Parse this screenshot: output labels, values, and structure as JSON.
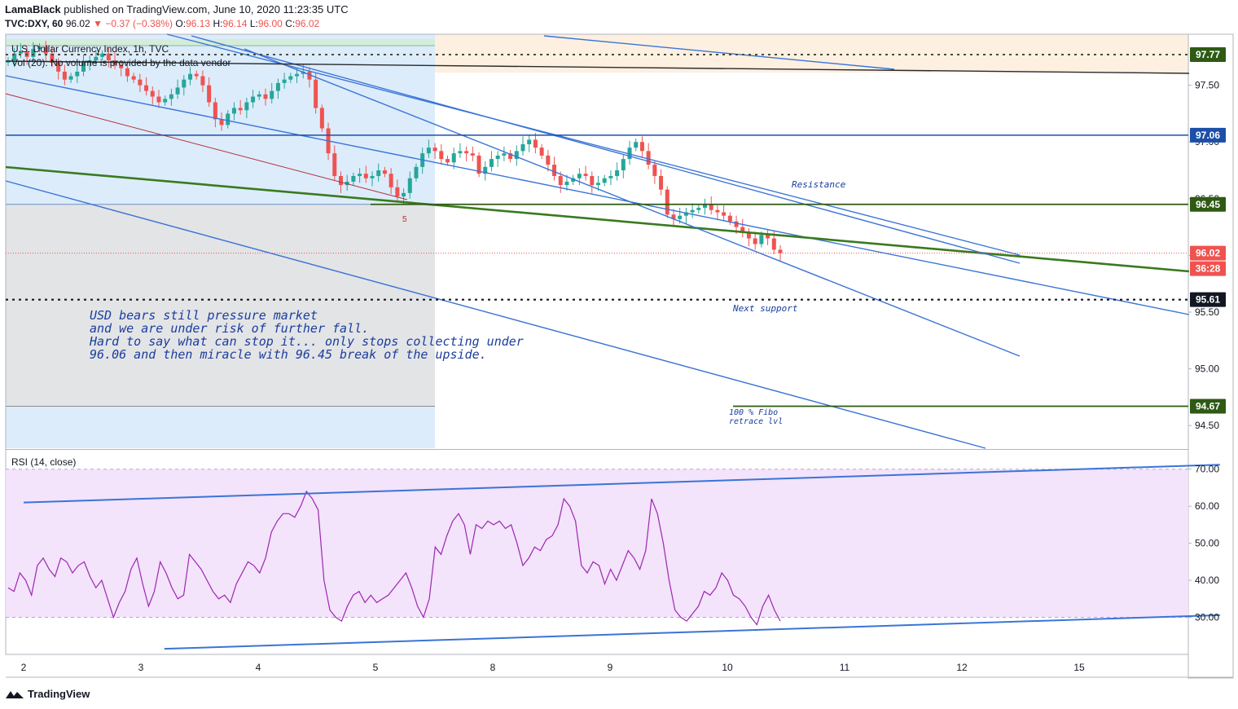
{
  "header": {
    "publisher": "LamaBlack",
    "published_text": "published on TradingView.com, June 10, 2020 11:23:35 UTC",
    "symbol_line_symbol": "TVC:DXY, 60",
    "symbol_line_price": "96.02",
    "symbol_line_change": "−0.37 (−0.38%)",
    "o_label": "O:",
    "o_value": "96.13",
    "h_label": "H:",
    "h_value": "96.14",
    "l_label": "L:",
    "l_value": "96.00",
    "c_label": "C:",
    "c_value": "96.02",
    "instrument_name": "U.S. Dollar Currency Index, 1h, TVC",
    "volume_legend": "Vol (20): No volume is provided by the data vendor"
  },
  "rsi_legend": "RSI (14, close)",
  "footer": {
    "brand": "TradingView"
  },
  "annotations": {
    "main_note": [
      "USD bears still pressure market",
      "and we are under risk of further fall.",
      "Hard to say what can stop it... only stops collecting under",
      "96.06 and then miracle with 96.45 break of the upside."
    ],
    "resistance": "Resistance",
    "next_support": "Next support",
    "fibo_line1": "100 % Fibo",
    "fibo_line2": "retrace lvl",
    "wave_label": "5"
  },
  "colors": {
    "up": "#26a69a",
    "down": "#ef5350",
    "trend_blue": "#3a74d6",
    "green": "#3a7a1e",
    "dark_green": "#2e5a14",
    "navy": "#1d4fa8",
    "rsi_line": "#9c27b0",
    "rsi_band": "#f3e3fb",
    "zone_blue": "#dcecfb",
    "zone_gray": "#e3e4e6",
    "zone_peach": "#fdf0e1"
  },
  "chart_data": [
    {
      "type": "candlestick",
      "ylim": [
        94.3,
        97.95
      ],
      "y_ticks": [
        94.5,
        95.0,
        95.5,
        96.0,
        96.5,
        97.0,
        97.5
      ],
      "y_tick_labels": [
        "94.50",
        "95.00",
        "95.50",
        "96.00",
        "96.50",
        "97.00",
        "97.50"
      ],
      "x_tick_labels": [
        "2",
        "3",
        "4",
        "5",
        "8",
        "9",
        "10",
        "11",
        "12",
        "15"
      ],
      "price_labels": [
        {
          "value": 97.77,
          "label": "97.77",
          "style": "dotted",
          "color": "#2e5a14"
        },
        {
          "value": 97.06,
          "label": "97.06",
          "style": "solid",
          "color": "#1d4fa8"
        },
        {
          "value": 96.45,
          "label": "96.45",
          "style": "solid",
          "color": "#2e5a14"
        },
        {
          "value": 96.02,
          "label": "96.02",
          "style": "current",
          "color": "#ef5350"
        },
        {
          "value": 95.61,
          "label": "95.61",
          "style": "dotted",
          "color": "#131722"
        },
        {
          "value": 94.67,
          "label": "94.67",
          "style": "solid",
          "color": "#2e5a14"
        }
      ],
      "countdown": "36:28",
      "close_series": [
        97.72,
        97.78,
        97.8,
        97.75,
        97.82,
        97.84,
        97.78,
        97.7,
        97.62,
        97.55,
        97.58,
        97.62,
        97.7,
        97.72,
        97.75,
        97.78,
        97.72,
        97.68,
        97.65,
        97.58,
        97.55,
        97.5,
        97.45,
        97.4,
        97.35,
        97.38,
        97.42,
        97.48,
        97.55,
        97.6,
        97.58,
        97.5,
        97.35,
        97.2,
        97.15,
        97.25,
        97.3,
        97.28,
        97.35,
        97.4,
        97.42,
        97.38,
        97.45,
        97.52,
        97.55,
        97.58,
        97.6,
        97.62,
        97.55,
        97.3,
        97.12,
        96.9,
        96.7,
        96.62,
        96.65,
        96.7,
        96.72,
        96.68,
        96.7,
        96.75,
        96.72,
        96.6,
        96.52,
        96.55,
        96.68,
        96.78,
        96.9,
        96.95,
        96.92,
        96.85,
        96.82,
        96.9,
        96.92,
        96.9,
        96.88,
        96.72,
        96.78,
        96.85,
        96.88,
        96.9,
        96.85,
        96.92,
        96.98,
        97.02,
        96.95,
        96.88,
        96.8,
        96.7,
        96.62,
        96.65,
        96.68,
        96.72,
        96.7,
        96.62,
        96.64,
        96.68,
        96.7,
        96.75,
        96.85,
        96.95,
        97.0,
        96.92,
        96.8,
        96.7,
        96.58,
        96.36,
        96.32,
        96.35,
        96.38,
        96.4,
        96.42,
        96.45,
        96.4,
        96.38,
        96.35,
        96.3,
        96.25,
        96.2,
        96.15,
        96.1,
        96.18,
        96.15,
        96.05,
        96.02
      ],
      "volume_available": false
    },
    {
      "type": "line",
      "name": "RSI (14, close)",
      "ylim": [
        20,
        75
      ],
      "y_ticks": [
        30,
        40,
        50,
        60,
        70
      ],
      "y_tick_labels": [
        "30.00",
        "40.00",
        "50.00",
        "60.00",
        "70.00"
      ],
      "values": [
        38,
        37,
        42,
        40,
        36,
        44,
        46,
        43,
        41,
        46,
        45,
        42,
        44,
        45,
        41,
        38,
        40,
        35,
        30,
        34,
        37,
        43,
        46,
        39,
        33,
        37,
        45,
        42,
        38,
        35,
        36,
        47,
        45,
        43,
        40,
        37,
        35,
        36,
        34,
        39,
        42,
        45,
        44,
        42,
        46,
        53,
        56,
        58,
        58,
        57,
        60,
        64,
        62,
        59,
        40,
        32,
        30,
        29,
        33,
        36,
        37,
        34,
        36,
        34,
        35,
        36,
        38,
        40,
        42,
        38,
        33,
        30,
        35,
        49,
        47,
        52,
        56,
        58,
        55,
        47,
        55,
        54,
        56,
        55,
        56,
        54,
        55,
        50,
        44,
        46,
        49,
        48,
        51,
        52,
        55,
        62,
        60,
        56,
        44,
        42,
        45,
        44,
        39,
        43,
        40,
        44,
        48,
        46,
        43,
        48,
        62,
        58,
        50,
        40,
        32,
        30,
        29,
        31,
        33,
        37,
        36,
        38,
        42,
        40,
        36,
        35,
        33,
        30,
        28,
        33,
        36,
        32,
        29
      ],
      "trendlines": [
        {
          "from": [
            2,
            61.0
          ],
          "to": [
            12.2,
            71.2
          ]
        },
        {
          "from": [
            3.2,
            21.5
          ],
          "to": [
            12.2,
            30.6
          ]
        }
      ]
    }
  ]
}
